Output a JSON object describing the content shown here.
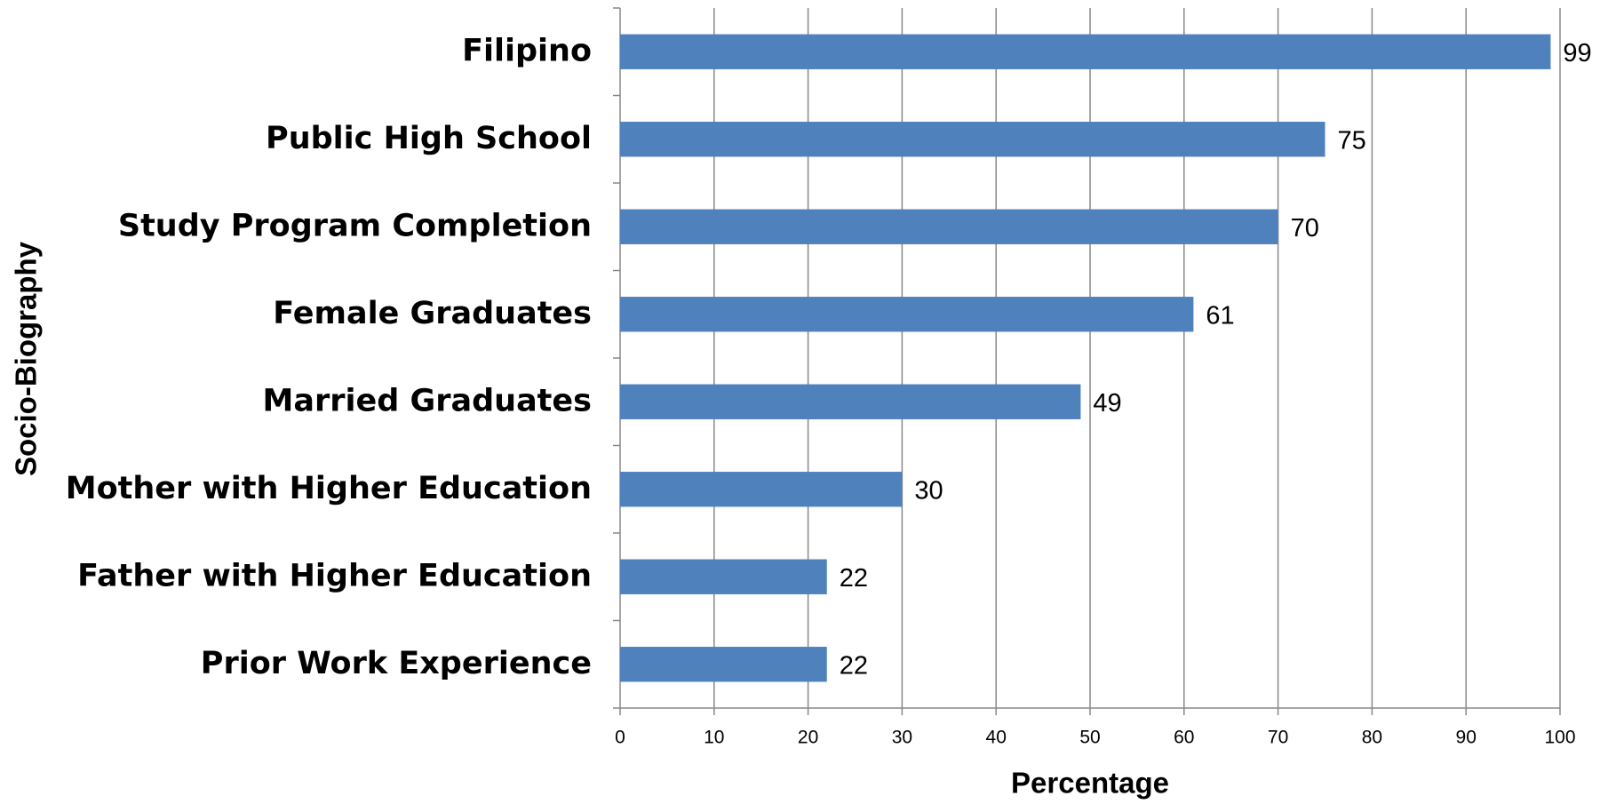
{
  "chart_data": {
    "type": "barh",
    "categories": [
      "Filipino",
      "Public High School",
      "Study Program Completion",
      "Female Graduates",
      "Married Graduates",
      "Mother with Higher Education",
      "Father with Higher Education",
      "Prior Work Experience"
    ],
    "values": [
      99,
      75,
      70,
      61,
      49,
      30,
      22,
      22
    ],
    "color": "#4f81bd",
    "xlabel": "Percentage",
    "ylabel": "Socio-Biography",
    "xlim": [
      0,
      100
    ],
    "xticks": [
      0,
      10,
      20,
      30,
      40,
      50,
      60,
      70,
      80,
      90,
      100
    ],
    "grid": true
  }
}
